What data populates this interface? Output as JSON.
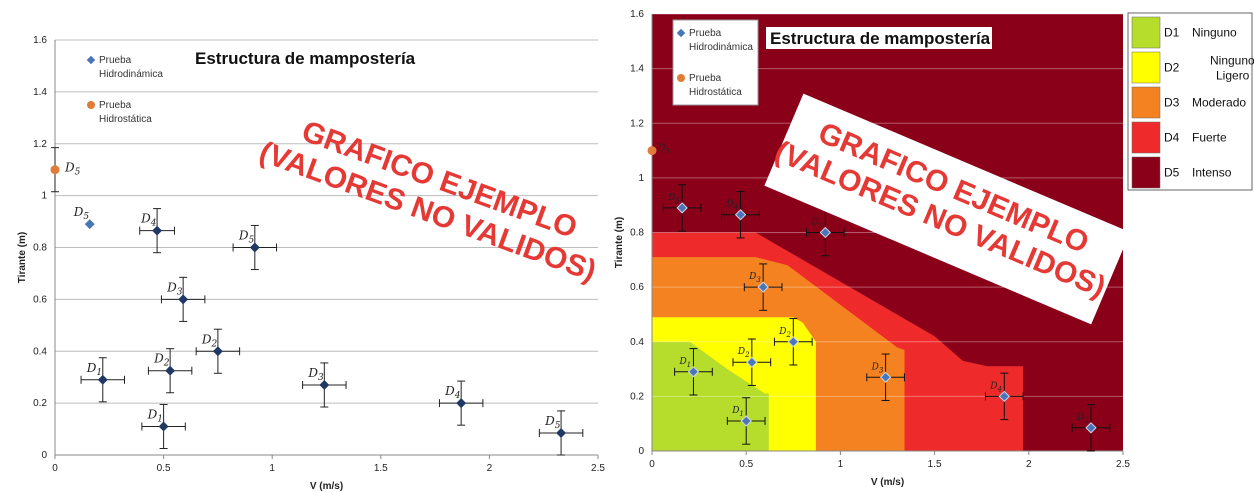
{
  "watermark": {
    "line1": "GRAFICO EJEMPLO",
    "line2": "(VALORES NO VALIDOS)"
  },
  "zone_legend": {
    "items": [
      {
        "code": "D1",
        "label": "Ninguno",
        "color": "#b6dd2b"
      },
      {
        "code": "D2",
        "label": "Ninguno a Ligero",
        "color": "#ffff00"
      },
      {
        "code": "D3",
        "label": "Moderado",
        "color": "#f58220"
      },
      {
        "code": "D4",
        "label": "Fuerte",
        "color": "#ee2a2a"
      },
      {
        "code": "D5",
        "label": "Intenso",
        "color": "#8b0019"
      }
    ]
  },
  "chart_data": [
    {
      "type": "scatter",
      "title": "Estructura de mampostería",
      "xlabel": "V (m/s)",
      "ylabel": "Tirante (m)",
      "xlim": [
        0,
        2.5
      ],
      "ylim": [
        0,
        1.6
      ],
      "xticks": [
        "0",
        "0.5",
        "1",
        "1.5",
        "2",
        "2.5"
      ],
      "yticks": [
        "0",
        "0.2",
        "0.4",
        "0.6",
        "0.8",
        "1",
        "1.2",
        "1.4",
        "1.6"
      ],
      "grid": "horizontal",
      "legend_position": "top-left",
      "series": [
        {
          "name": "Prueba Hidrodinámica",
          "color": "#4a76b8",
          "points": [
            {
              "x": 0.16,
              "y": 0.89,
              "label": "D5",
              "xerr": 0,
              "yerr": 0
            },
            {
              "x": 0.47,
              "y": 0.865,
              "label": "D4",
              "xerr": 0.08,
              "yerr": 0.085
            },
            {
              "x": 0.92,
              "y": 0.8,
              "label": "D5",
              "xerr": 0.1,
              "yerr": 0.085
            },
            {
              "x": 0.59,
              "y": 0.6,
              "label": "D3",
              "xerr": 0.1,
              "yerr": 0.085
            },
            {
              "x": 0.75,
              "y": 0.4,
              "label": "D2",
              "xerr": 0.1,
              "yerr": 0.085
            },
            {
              "x": 0.53,
              "y": 0.325,
              "label": "D2",
              "xerr": 0.1,
              "yerr": 0.085
            },
            {
              "x": 0.22,
              "y": 0.29,
              "label": "D1",
              "xerr": 0.1,
              "yerr": 0.085
            },
            {
              "x": 1.24,
              "y": 0.27,
              "label": "D3",
              "xerr": 0.1,
              "yerr": 0.085
            },
            {
              "x": 0.5,
              "y": 0.11,
              "label": "D1",
              "xerr": 0.1,
              "yerr": 0.085
            },
            {
              "x": 1.87,
              "y": 0.2,
              "label": "D4",
              "xerr": 0.1,
              "yerr": 0.085
            },
            {
              "x": 2.33,
              "y": 0.085,
              "label": "D5",
              "xerr": 0.1,
              "yerr": 0.085
            }
          ]
        },
        {
          "name": "Prueba Hidrostática",
          "color": "#e07b39",
          "points": [
            {
              "x": 0.0,
              "y": 1.1,
              "label": "D5",
              "xerr": 0,
              "yerr": 0.085
            }
          ]
        }
      ]
    },
    {
      "type": "scatter",
      "title": "Estructura de mampostería",
      "xlabel": "V (m/s)",
      "ylabel": "Tirante (m)",
      "xlim": [
        0,
        2.5
      ],
      "ylim": [
        0,
        1.6
      ],
      "xticks": [
        "0",
        "0.5",
        "1",
        "1.5",
        "2",
        "2.5"
      ],
      "yticks": [
        "0",
        "0.2",
        "0.4",
        "0.6",
        "0.8",
        "1",
        "1.2",
        "1.4",
        "1.6"
      ],
      "legend_position": "top-left",
      "series": [
        {
          "name": "Prueba Hidrodinámica",
          "color": "#4a76b8",
          "points": [
            {
              "x": 0.16,
              "y": 0.89,
              "label": "D5",
              "xerr": 0.1,
              "yerr": 0.085
            },
            {
              "x": 0.47,
              "y": 0.865,
              "label": "D4",
              "xerr": 0.1,
              "yerr": 0.085
            },
            {
              "x": 0.92,
              "y": 0.8,
              "label": "D5",
              "xerr": 0.1,
              "yerr": 0.085
            },
            {
              "x": 0.59,
              "y": 0.6,
              "label": "D3",
              "xerr": 0.1,
              "yerr": 0.085
            },
            {
              "x": 0.75,
              "y": 0.4,
              "label": "D2",
              "xerr": 0.1,
              "yerr": 0.085
            },
            {
              "x": 0.53,
              "y": 0.325,
              "label": "D2",
              "xerr": 0.1,
              "yerr": 0.085
            },
            {
              "x": 0.22,
              "y": 0.29,
              "label": "D1",
              "xerr": 0.1,
              "yerr": 0.085
            },
            {
              "x": 1.24,
              "y": 0.27,
              "label": "D3",
              "xerr": 0.1,
              "yerr": 0.085
            },
            {
              "x": 0.5,
              "y": 0.11,
              "label": "D1",
              "xerr": 0.1,
              "yerr": 0.085
            },
            {
              "x": 1.87,
              "y": 0.2,
              "label": "D4",
              "xerr": 0.1,
              "yerr": 0.085
            },
            {
              "x": 2.33,
              "y": 0.085,
              "label": "D5",
              "xerr": 0.1,
              "yerr": 0.085
            }
          ]
        },
        {
          "name": "Prueba Hidrostática",
          "color": "#e07b39",
          "points": [
            {
              "x": 0.0,
              "y": 1.1,
              "label": "D5",
              "xerr": 0,
              "yerr": 0
            }
          ]
        }
      ],
      "zones": [
        {
          "code": "D5",
          "color": "#8b0019",
          "boundary": [
            [
              0,
              1.6
            ],
            [
              2.5,
              1.6
            ],
            [
              2.5,
              0
            ],
            [
              0,
              0
            ]
          ]
        },
        {
          "code": "D4",
          "color": "#ee2a2a",
          "boundary": [
            [
              0,
              0.8
            ],
            [
              0.55,
              0.8
            ],
            [
              1.5,
              0.42
            ],
            [
              1.65,
              0.33
            ],
            [
              1.78,
              0.31
            ],
            [
              1.97,
              0.31
            ],
            [
              1.97,
              0
            ],
            [
              0,
              0
            ]
          ]
        },
        {
          "code": "D3",
          "color": "#f58220",
          "boundary": [
            [
              0,
              0.71
            ],
            [
              0.55,
              0.71
            ],
            [
              0.72,
              0.68
            ],
            [
              1.3,
              0.38
            ],
            [
              1.34,
              0.37
            ],
            [
              1.34,
              0
            ],
            [
              0,
              0
            ]
          ]
        },
        {
          "code": "D2",
          "color": "#ffff00",
          "boundary": [
            [
              0,
              0.49
            ],
            [
              0.75,
              0.49
            ],
            [
              0.8,
              0.47
            ],
            [
              0.87,
              0.4
            ],
            [
              0.87,
              0
            ],
            [
              0,
              0
            ]
          ]
        },
        {
          "code": "D1",
          "color": "#b6dd2b",
          "boundary": [
            [
              0,
              0.4
            ],
            [
              0.2,
              0.4
            ],
            [
              0.4,
              0.3
            ],
            [
              0.6,
              0.21
            ],
            [
              0.62,
              0.21
            ],
            [
              0.62,
              0
            ],
            [
              0,
              0
            ]
          ]
        }
      ]
    }
  ]
}
